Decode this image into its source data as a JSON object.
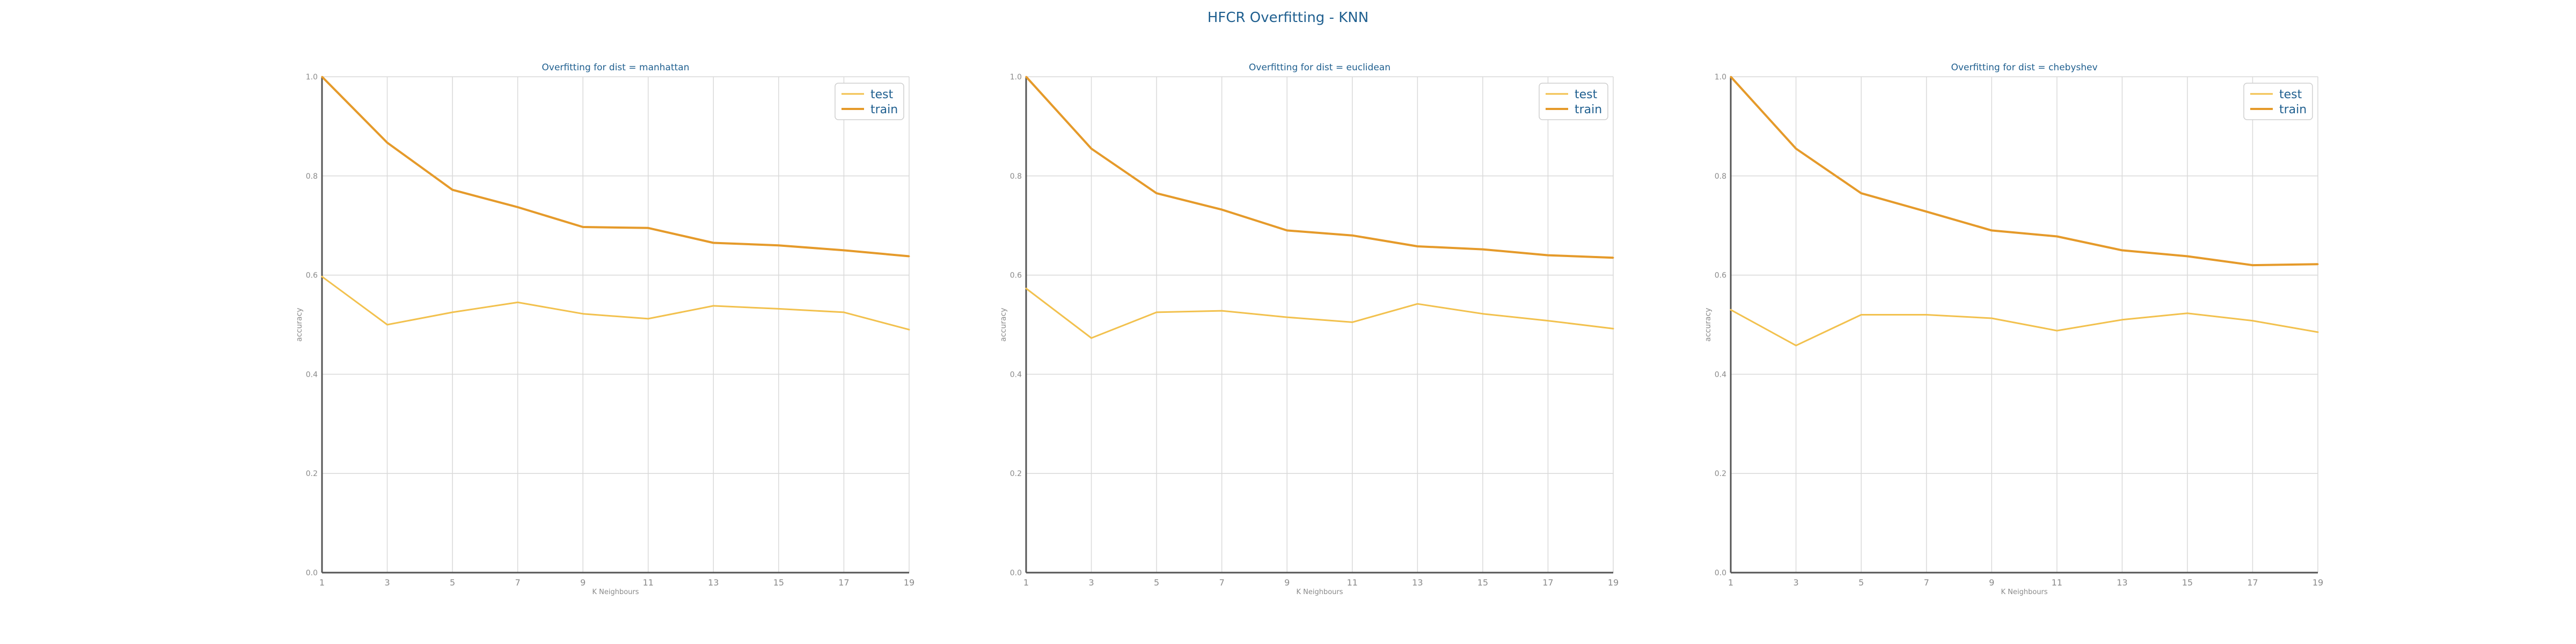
{
  "figure": {
    "title": "HFCR Overfitting - KNN"
  },
  "colors": {
    "test": "#f2c14e",
    "train": "#e59a2a",
    "title": "#1f5f8f",
    "grid": "#d9d9d9",
    "axis": "#555555",
    "tick": "#8a8a8a"
  },
  "chart_data": [
    {
      "type": "line",
      "title": "Overfitting for dist = manhattan",
      "xlabel": "K Neighbours",
      "ylabel": "accuracy",
      "x": [
        1,
        3,
        5,
        7,
        9,
        11,
        13,
        15,
        17,
        19
      ],
      "ylim": [
        0.0,
        1.0
      ],
      "yticks": [
        "0.0",
        "0.2",
        "0.4",
        "0.6",
        "0.8",
        "1.0"
      ],
      "grid": true,
      "legend": "top-right",
      "series": [
        {
          "name": "test",
          "values": [
            0.597,
            0.5,
            0.525,
            0.545,
            0.522,
            0.512,
            0.538,
            0.532,
            0.525,
            0.49
          ]
        },
        {
          "name": "train",
          "values": [
            1.0,
            0.867,
            0.772,
            0.737,
            0.697,
            0.695,
            0.665,
            0.66,
            0.65,
            0.638
          ]
        }
      ]
    },
    {
      "type": "line",
      "title": "Overfitting for dist = euclidean",
      "xlabel": "K Neighbours",
      "ylabel": "accuracy",
      "x": [
        1,
        3,
        5,
        7,
        9,
        11,
        13,
        15,
        17,
        19
      ],
      "ylim": [
        0.0,
        1.0
      ],
      "yticks": [
        "0.0",
        "0.2",
        "0.4",
        "0.6",
        "0.8",
        "1.0"
      ],
      "grid": true,
      "legend": "top-right",
      "series": [
        {
          "name": "test",
          "values": [
            0.573,
            0.473,
            0.525,
            0.528,
            0.515,
            0.505,
            0.542,
            0.522,
            0.508,
            0.492
          ]
        },
        {
          "name": "train",
          "values": [
            1.0,
            0.855,
            0.765,
            0.732,
            0.69,
            0.68,
            0.658,
            0.652,
            0.64,
            0.635
          ]
        }
      ]
    },
    {
      "type": "line",
      "title": "Overfitting for dist = chebyshev",
      "xlabel": "K Neighbours",
      "ylabel": "accuracy",
      "x": [
        1,
        3,
        5,
        7,
        9,
        11,
        13,
        15,
        17,
        19
      ],
      "ylim": [
        0.0,
        1.0
      ],
      "yticks": [
        "0.0",
        "0.2",
        "0.4",
        "0.6",
        "0.8",
        "1.0"
      ],
      "grid": true,
      "legend": "top-right",
      "series": [
        {
          "name": "test",
          "values": [
            0.53,
            0.458,
            0.52,
            0.52,
            0.513,
            0.488,
            0.51,
            0.523,
            0.508,
            0.485
          ]
        },
        {
          "name": "train",
          "values": [
            1.0,
            0.855,
            0.765,
            0.728,
            0.69,
            0.678,
            0.65,
            0.638,
            0.62,
            0.622
          ]
        }
      ]
    }
  ]
}
